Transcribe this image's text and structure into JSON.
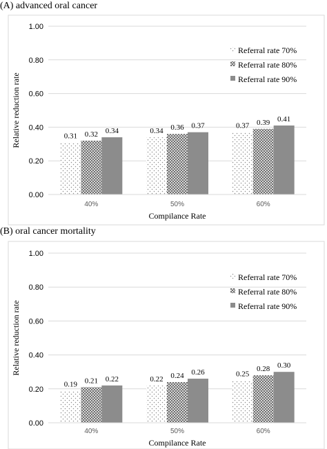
{
  "chart_data": [
    {
      "type": "bar",
      "title": "(A) advanced oral cancer",
      "xlabel": "Compilance Rate",
      "ylabel": "Relative reduction rate",
      "categories": [
        "40%",
        "50%",
        "60%"
      ],
      "ylim": [
        0,
        1
      ],
      "yticks": [
        "0.00",
        "0.20",
        "0.40",
        "0.60",
        "0.80",
        "1.00"
      ],
      "grid": true,
      "legend_position": "top-right",
      "series": [
        {
          "name": "Referral rate 70%",
          "values": [
            0.31,
            0.34,
            0.37
          ],
          "labels": [
            "0.31",
            "0.34",
            "0.37"
          ],
          "pattern": "dots"
        },
        {
          "name": "Referral rate 80%",
          "values": [
            0.32,
            0.36,
            0.39
          ],
          "labels": [
            "0.32",
            "0.36",
            "0.39"
          ],
          "pattern": "checker"
        },
        {
          "name": "Referral rate 90%",
          "values": [
            0.34,
            0.37,
            0.41
          ],
          "labels": [
            "0.34",
            "0.37",
            "0.41"
          ],
          "pattern": "solid"
        }
      ]
    },
    {
      "type": "bar",
      "title": "(B) oral cancer mortality",
      "xlabel": "Compilance Rate",
      "ylabel": "Relative reduction rate",
      "categories": [
        "40%",
        "50%",
        "60%"
      ],
      "ylim": [
        0,
        1
      ],
      "yticks": [
        "0.00",
        "0.20",
        "0.40",
        "0.60",
        "0.80",
        "1.00"
      ],
      "grid": true,
      "legend_position": "top-right",
      "series": [
        {
          "name": "Referral rate 70%",
          "values": [
            0.19,
            0.22,
            0.25
          ],
          "labels": [
            "0.19",
            "0.22",
            "0.25"
          ],
          "pattern": "dots"
        },
        {
          "name": "Referral rate 80%",
          "values": [
            0.21,
            0.24,
            0.28
          ],
          "labels": [
            "0.21",
            "0.24",
            "0.28"
          ],
          "pattern": "checker"
        },
        {
          "name": "Referral rate 90%",
          "values": [
            0.22,
            0.26,
            0.3
          ],
          "labels": [
            "0.22",
            "0.26",
            "0.30"
          ],
          "pattern": "solid"
        }
      ]
    }
  ],
  "colors": {
    "solid_bar": "#8c8c8c",
    "pattern_ink": "#7a7a7a",
    "grid": "#d9d9d9",
    "frame": "#d9d9d9",
    "tick_text": "#595959"
  }
}
